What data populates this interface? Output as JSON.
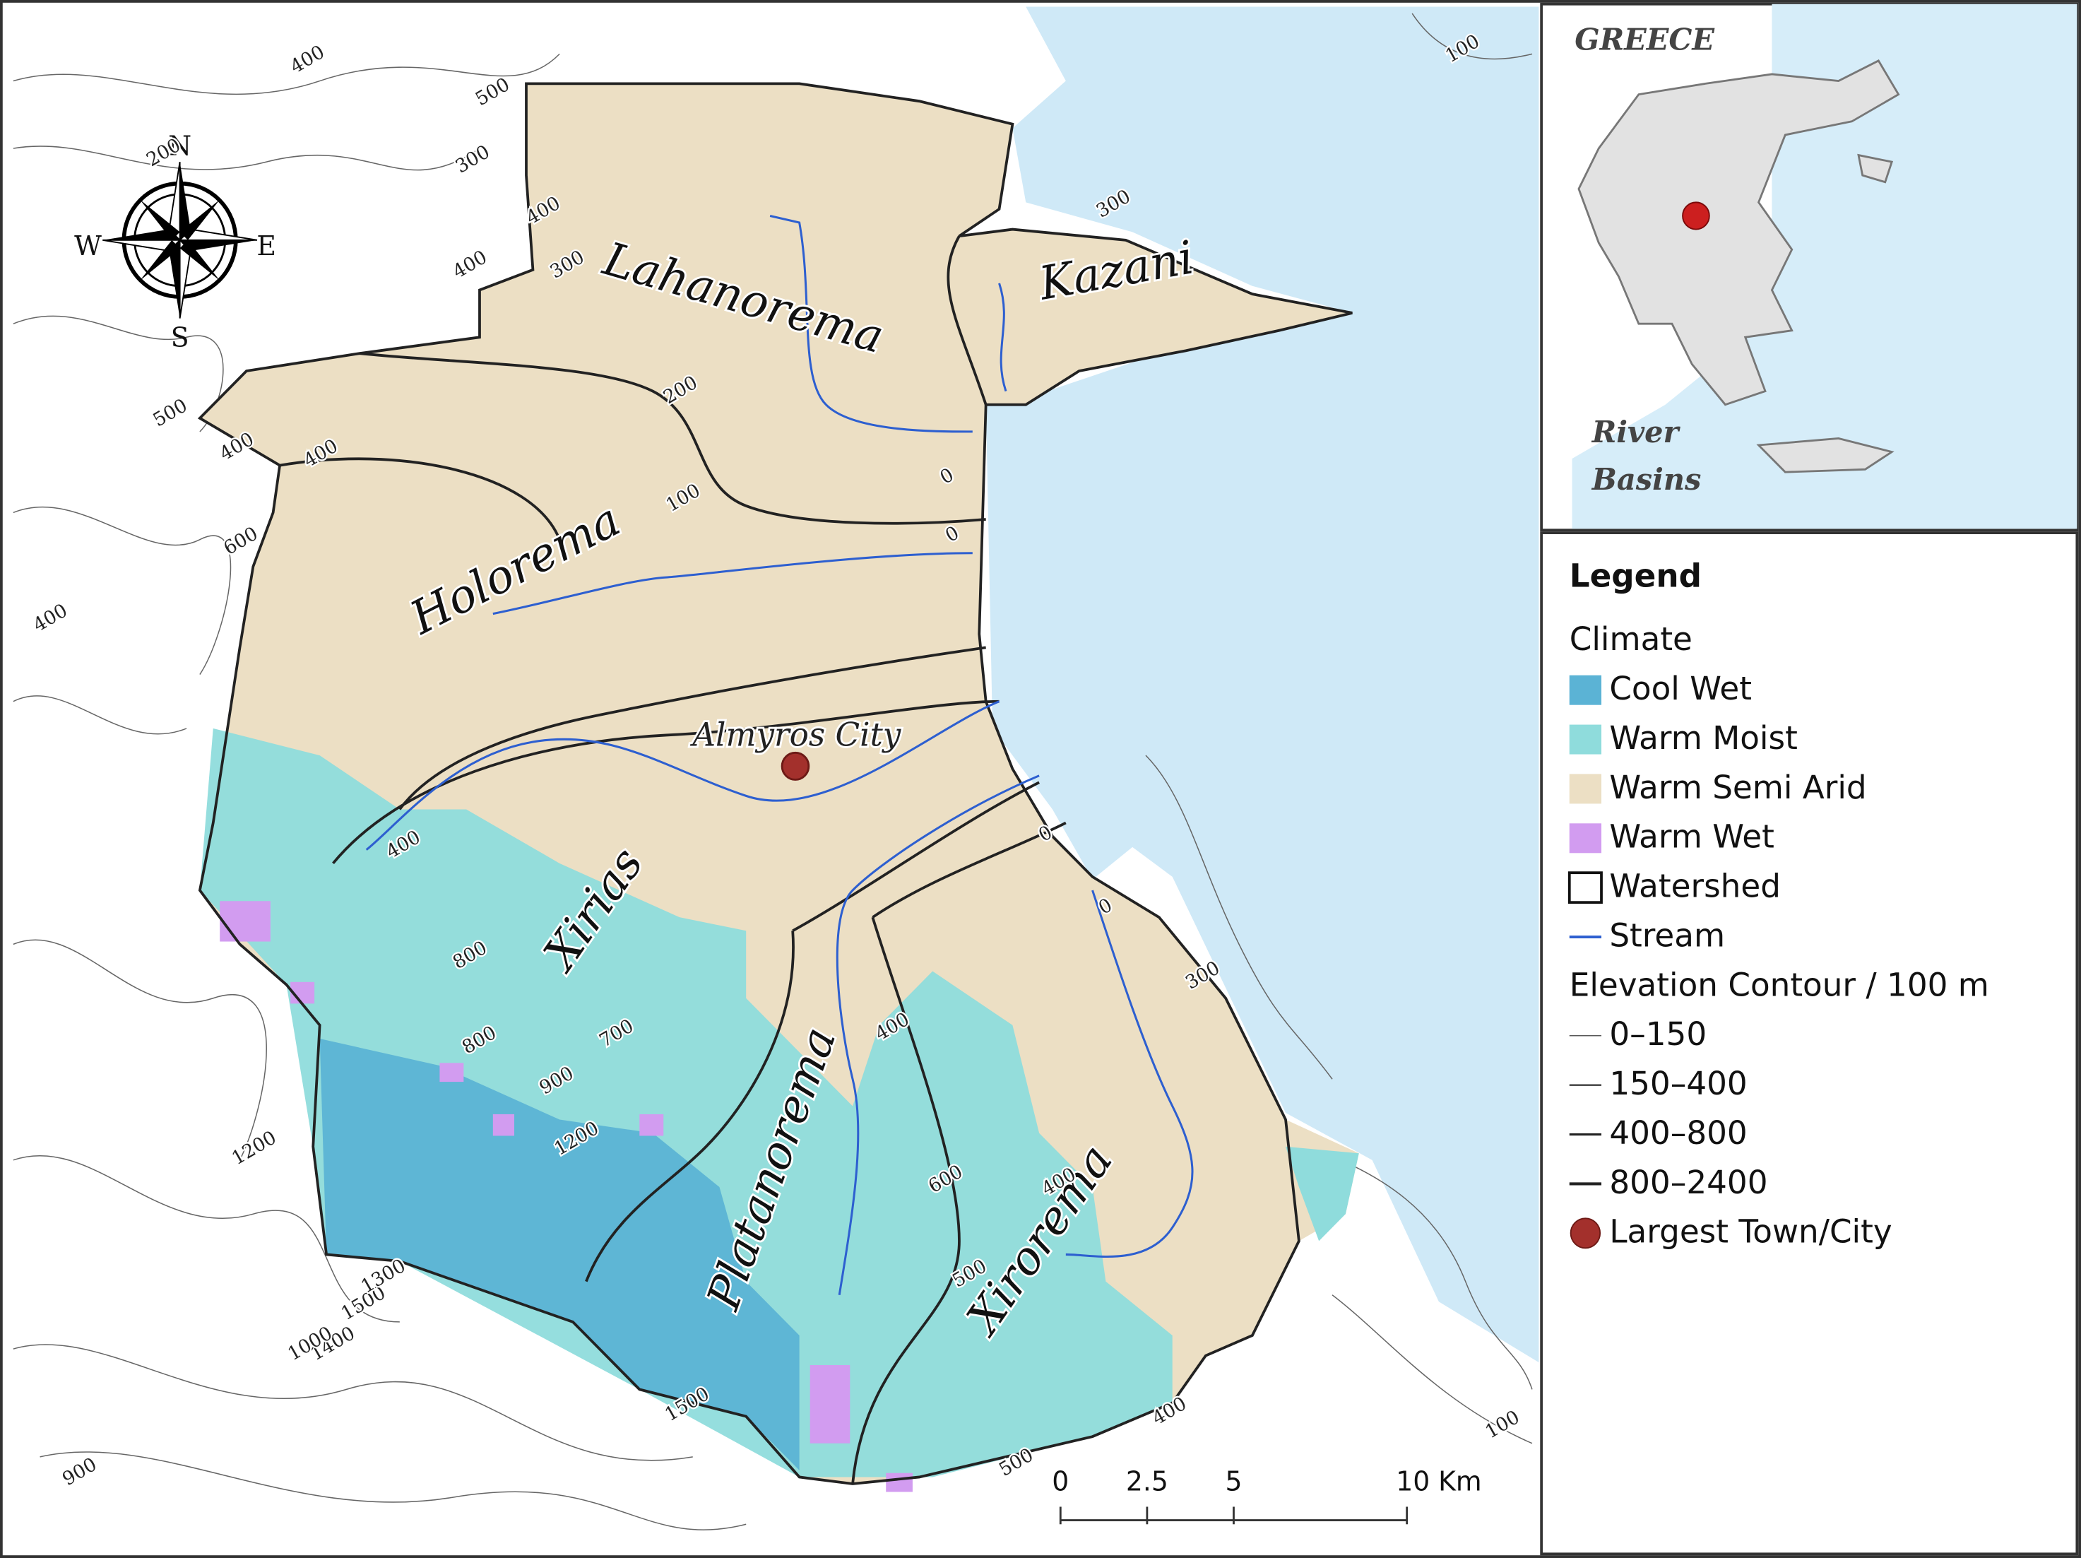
{
  "map": {
    "basins": [
      "Lahanorema",
      "Kazani",
      "Holorema",
      "Xirias",
      "Platanorema",
      "Xirorema"
    ],
    "city": "Almyros City",
    "compass": [
      "N",
      "E",
      "S",
      "W"
    ],
    "contour_labels": [
      "400",
      "500",
      "300",
      "200",
      "400",
      "300",
      "400",
      "500",
      "400",
      "400",
      "600",
      "400",
      "200",
      "100",
      "0",
      "0",
      "400",
      "800",
      "700",
      "800",
      "900",
      "1200",
      "1500",
      "1400",
      "1300",
      "1200",
      "400",
      "600",
      "500",
      "400",
      "0",
      "0",
      "300",
      "400",
      "500",
      "900",
      "1000",
      "100",
      "1500",
      "300",
      "100"
    ],
    "scale_bar": [
      "0",
      "2.5",
      "5",
      "10 Km"
    ]
  },
  "inset": {
    "title": "GREECE",
    "caption": [
      "River",
      "Basins"
    ]
  },
  "legend": {
    "title": "Legend",
    "climate_heading": "Climate",
    "climate": [
      {
        "label": "Cool Wet",
        "color": "#5bb3d5"
      },
      {
        "label": "Warm Moist",
        "color": "#8fdcdc"
      },
      {
        "label": "Warm Semi Arid",
        "color": "#ecdfc4"
      },
      {
        "label": "Warm Wet",
        "color": "#d29cf0"
      }
    ],
    "watershed": "Watershed",
    "stream": "Stream",
    "contour_heading": "Elevation Contour / 100 m",
    "contours": [
      {
        "label": "0–150",
        "width": 0.6
      },
      {
        "label": "150–400",
        "width": 1.1
      },
      {
        "label": "400–800",
        "width": 1.6
      },
      {
        "label": "800–2400",
        "width": 2.2
      }
    ],
    "city": "Largest Town/City"
  }
}
